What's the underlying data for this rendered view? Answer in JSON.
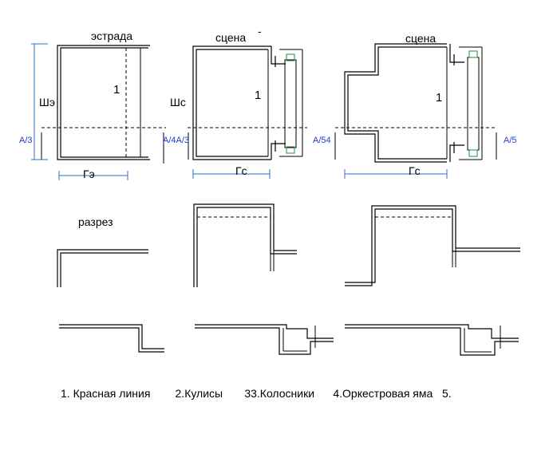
{
  "labels": {
    "estrada": "эстрада",
    "scene1": "сцена",
    "scene2": "сцена",
    "dash_mark": "-",
    "sh_e": "Шэ",
    "sh_s": "Шс",
    "g_e": "Гэ",
    "g_s1": "Гс",
    "g_s2": "Гс",
    "razrez": "разрез",
    "one_a": "1",
    "one_b": "1",
    "one_c": "1"
  },
  "axis_marks": {
    "a3_left": "А/3",
    "a4_a3": "А/4А/3",
    "a54": "А/54",
    "a5": "А/5"
  },
  "legend": {
    "text": "1. Красная линия        2.Кулисы       33.Колосники      4.Оркестровая яма   5."
  }
}
